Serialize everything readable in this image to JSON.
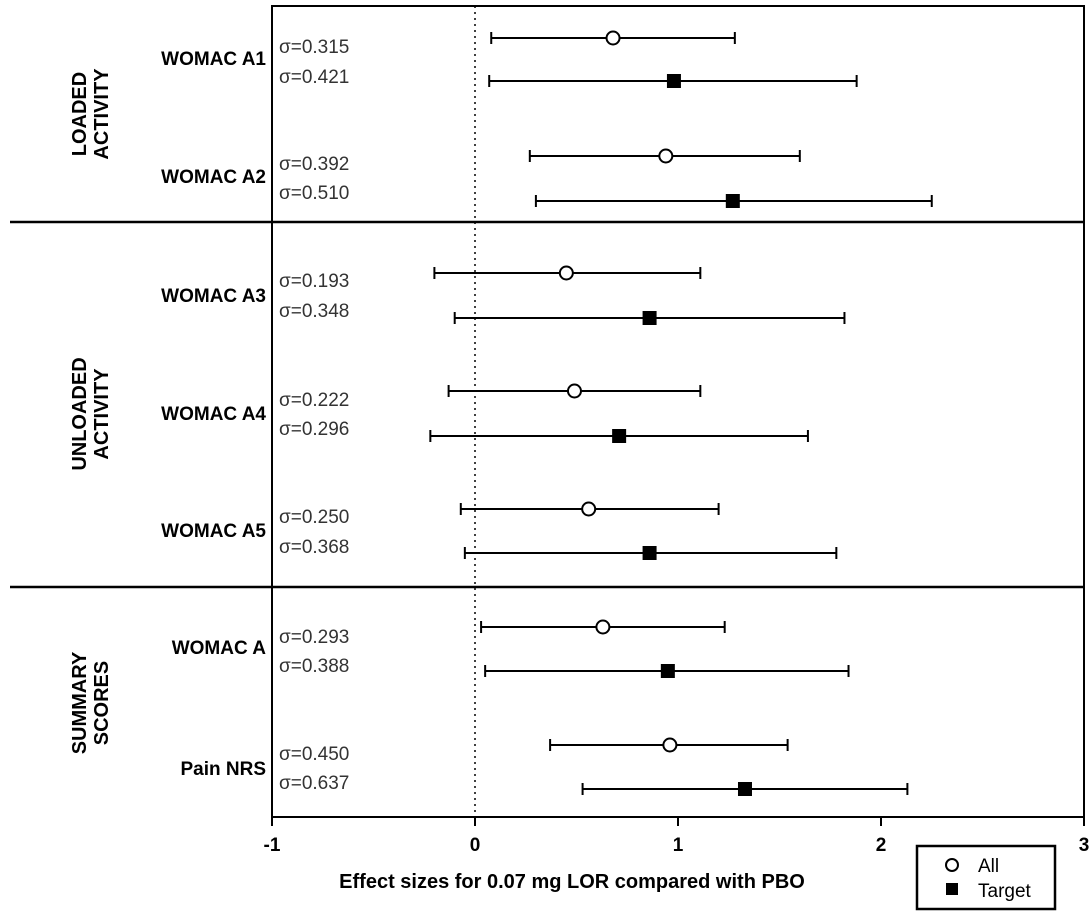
{
  "chart_data": {
    "type": "forest",
    "xlabel": "Effect sizes for 0.07 mg LOR compared with PBO",
    "xlim": [
      -1,
      3
    ],
    "x_ticks": [
      "-1",
      "0",
      "1",
      "2",
      "3"
    ],
    "reference_line_x": 0,
    "series": [
      {
        "name": "All",
        "marker": "open-circle"
      },
      {
        "name": "Target",
        "marker": "filled-square"
      }
    ],
    "groups": [
      {
        "label_lines": [
          "LOADED",
          "ACTIVITY"
        ],
        "rows": [
          {
            "label": "WOMAC A1",
            "all": {
              "sigma": "σ=0.315",
              "estimate": 0.68,
              "lower": 0.08,
              "upper": 1.28
            },
            "target": {
              "sigma": "σ=0.421",
              "estimate": 0.98,
              "lower": 0.07,
              "upper": 1.88
            }
          },
          {
            "label": "WOMAC A2",
            "all": {
              "sigma": "σ=0.392",
              "estimate": 0.94,
              "lower": 0.27,
              "upper": 1.6
            },
            "target": {
              "sigma": "σ=0.510",
              "estimate": 1.27,
              "lower": 0.3,
              "upper": 2.25
            }
          }
        ]
      },
      {
        "label_lines": [
          "UNLOADED",
          "ACTIVITY"
        ],
        "rows": [
          {
            "label": "WOMAC A3",
            "all": {
              "sigma": "σ=0.193",
              "estimate": 0.45,
              "lower": -0.2,
              "upper": 1.11
            },
            "target": {
              "sigma": "σ=0.348",
              "estimate": 0.86,
              "lower": -0.1,
              "upper": 1.82
            }
          },
          {
            "label": "WOMAC A4",
            "all": {
              "sigma": "σ=0.222",
              "estimate": 0.49,
              "lower": -0.13,
              "upper": 1.11
            },
            "target": {
              "sigma": "σ=0.296",
              "estimate": 0.71,
              "lower": -0.22,
              "upper": 1.64
            }
          },
          {
            "label": "WOMAC A5",
            "all": {
              "sigma": "σ=0.250",
              "estimate": 0.56,
              "lower": -0.07,
              "upper": 1.2
            },
            "target": {
              "sigma": "σ=0.368",
              "estimate": 0.86,
              "lower": -0.05,
              "upper": 1.78
            }
          }
        ]
      },
      {
        "label_lines": [
          "SUMMARY",
          "SCORES"
        ],
        "rows": [
          {
            "label": "WOMAC A",
            "all": {
              "sigma": "σ=0.293",
              "estimate": 0.63,
              "lower": 0.03,
              "upper": 1.23
            },
            "target": {
              "sigma": "σ=0.388",
              "estimate": 0.95,
              "lower": 0.05,
              "upper": 1.84
            }
          },
          {
            "label": "Pain NRS",
            "all": {
              "sigma": "σ=0.450",
              "estimate": 0.96,
              "lower": 0.37,
              "upper": 1.54
            },
            "target": {
              "sigma": "σ=0.637",
              "estimate": 1.33,
              "lower": 0.53,
              "upper": 2.13
            }
          }
        ]
      }
    ],
    "legend_position": "bottom-right",
    "grid": false
  }
}
